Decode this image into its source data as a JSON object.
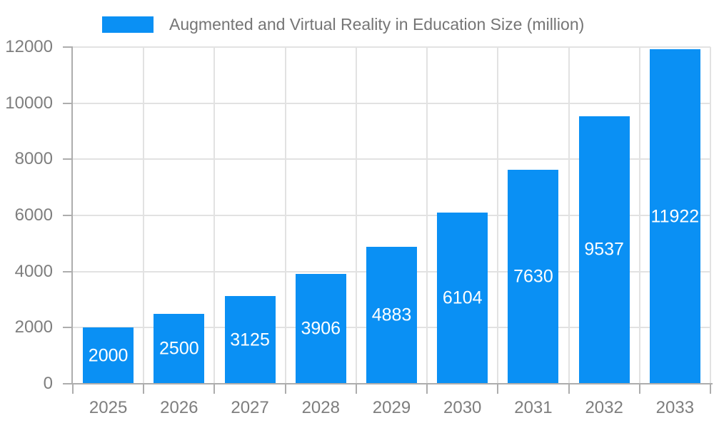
{
  "legend": {
    "label": "Augmented and Virtual Reality in Education Size (million)"
  },
  "chart_data": {
    "type": "bar",
    "title": "Augmented and Virtual Reality in Education Size (million)",
    "categories": [
      "2025",
      "2026",
      "2027",
      "2028",
      "2029",
      "2030",
      "2031",
      "2032",
      "2033"
    ],
    "series": [
      {
        "name": "Augmented and Virtual Reality in Education Size (million)",
        "values": [
          2000,
          2500,
          3125,
          3906,
          4883,
          6104,
          7630,
          9537,
          11922
        ]
      }
    ],
    "xlabel": "",
    "ylabel": "",
    "ylim": [
      0,
      12000
    ],
    "yticks": [
      0,
      2000,
      4000,
      6000,
      8000,
      10000,
      12000
    ],
    "grid": true,
    "legend_position": "top-left",
    "value_label_position": "inside-center",
    "colors": {
      "bar": "#0A90F4",
      "bar_label": "#FFFFFF",
      "axis": "#ADADAD",
      "gridline": "#E2E2E2",
      "tick_label": "#7E7E7E",
      "legend_text": "#757575",
      "background": "#FFFFFF"
    }
  }
}
